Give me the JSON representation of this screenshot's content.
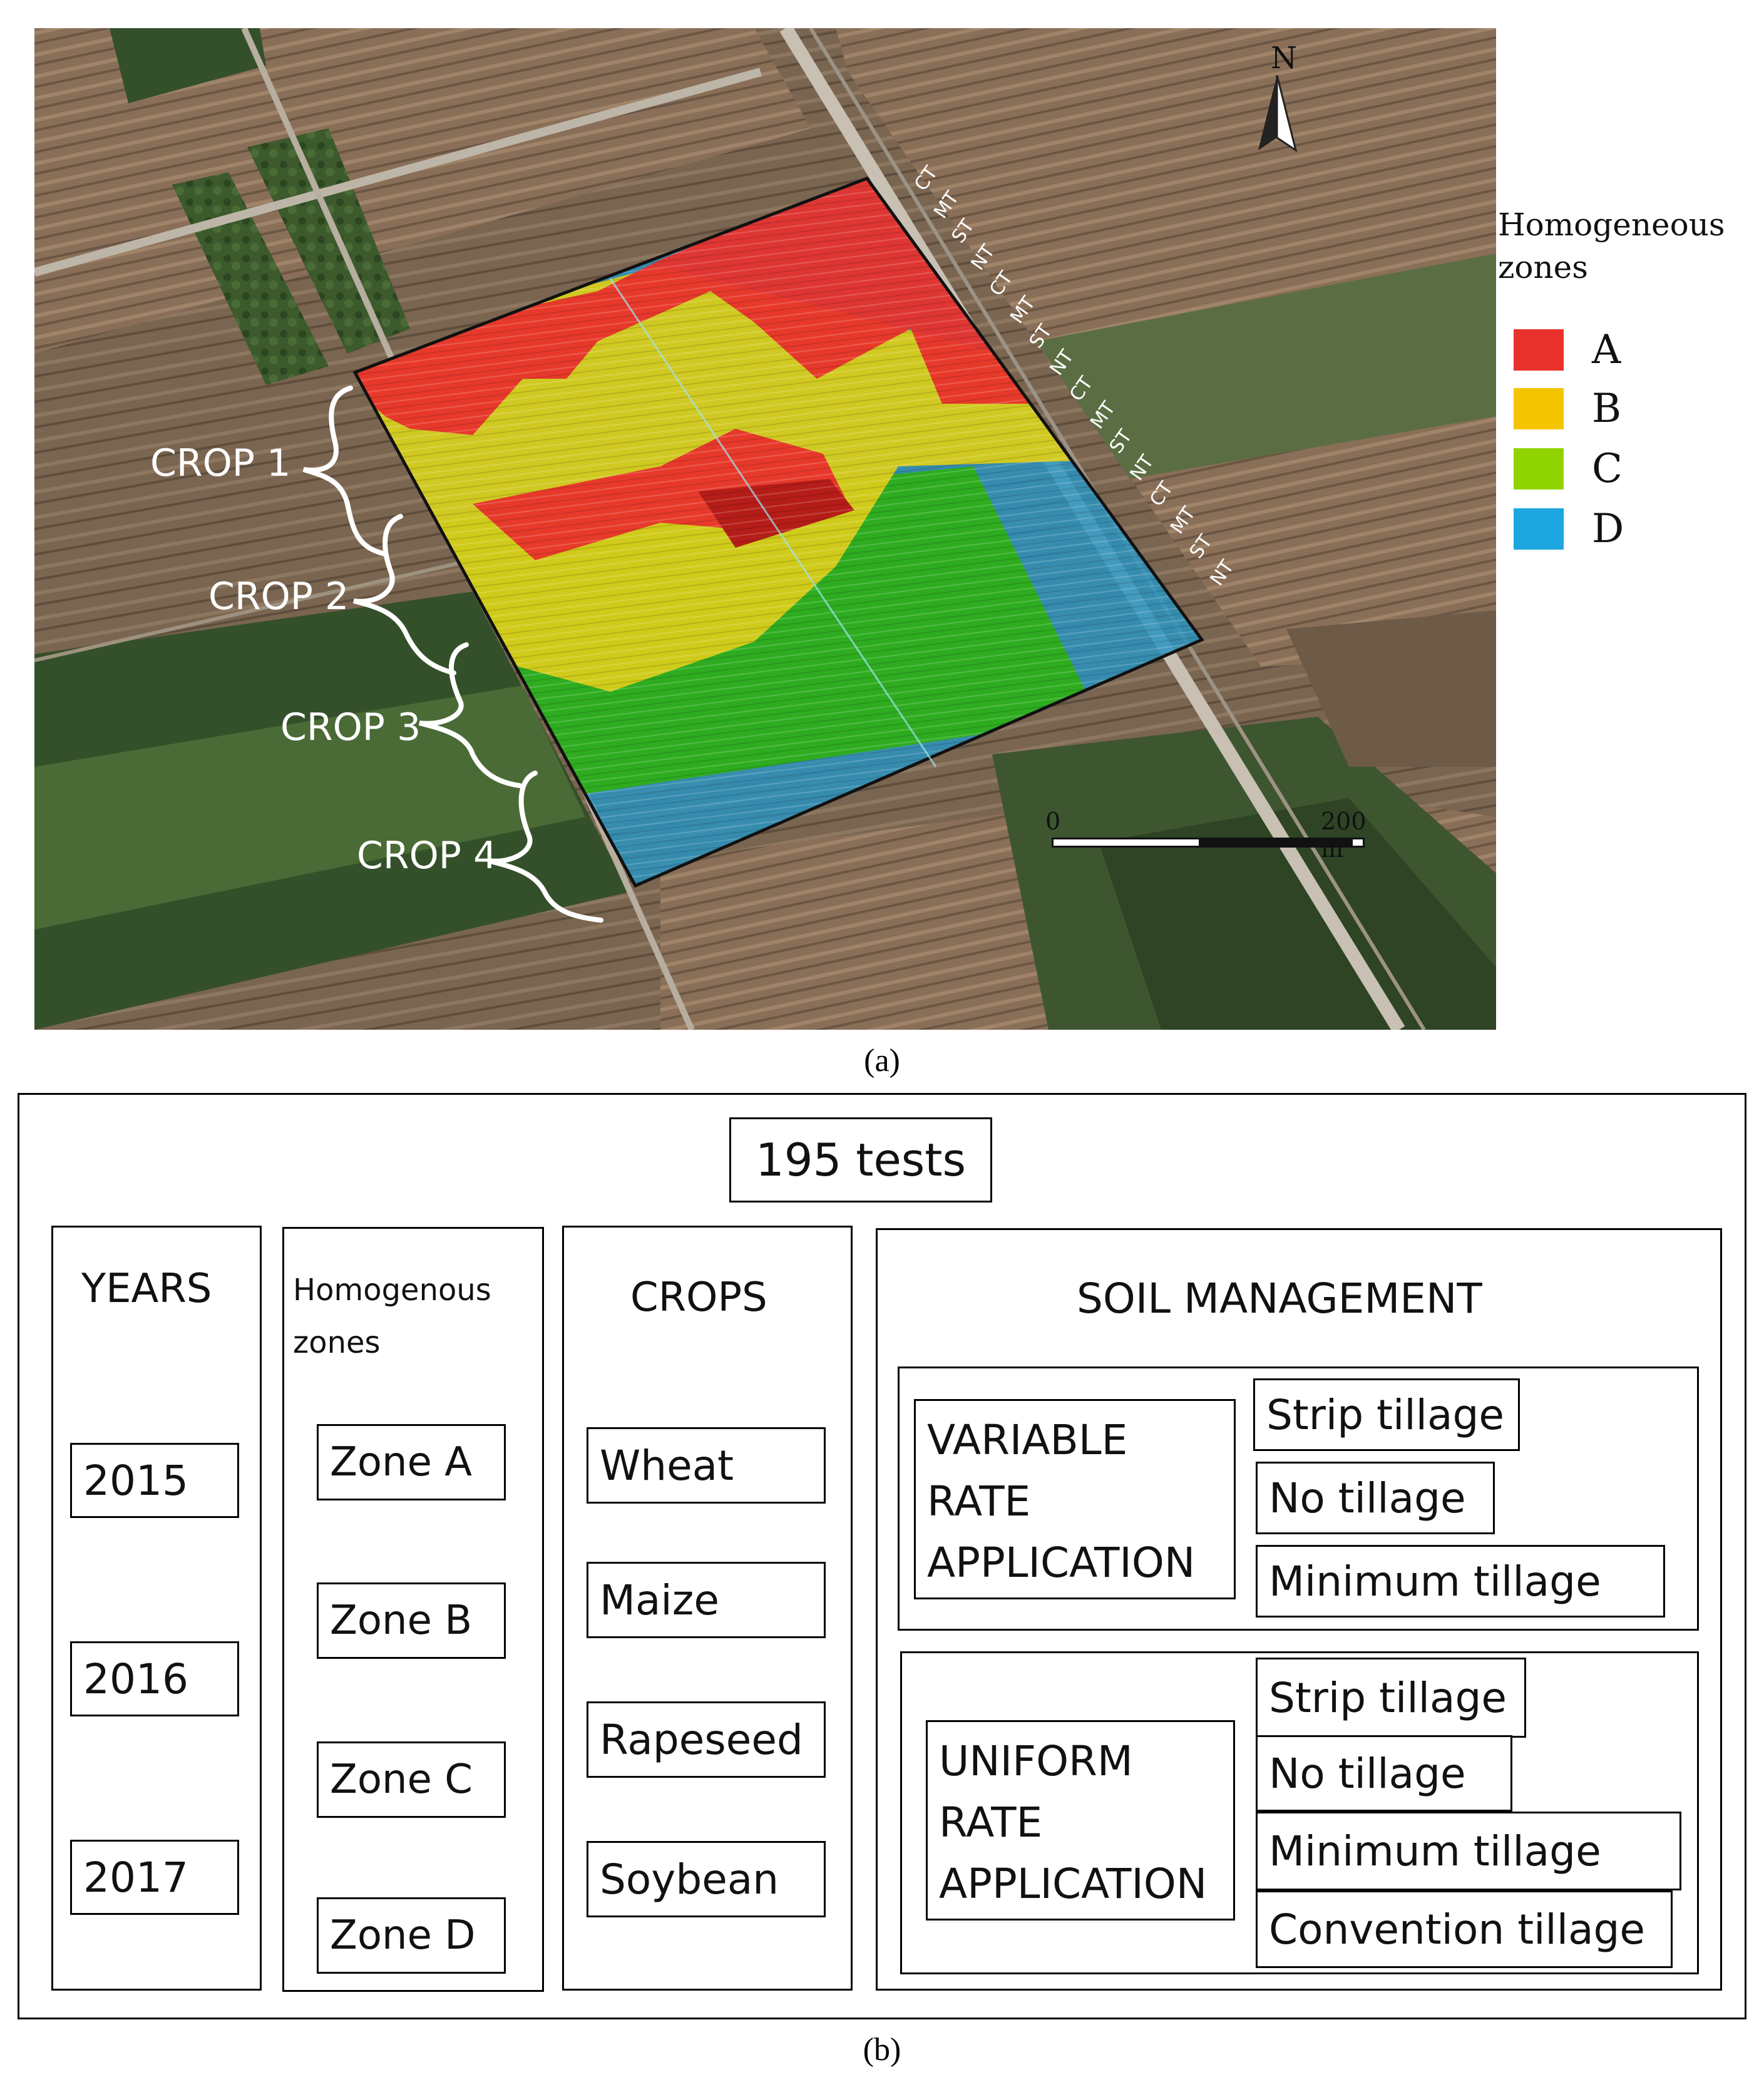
{
  "panel_a": {
    "caption": "(a)",
    "north_label": "N",
    "legend": {
      "title_line1": "Homogeneous",
      "title_line2": "zones",
      "items": [
        {
          "label": "A",
          "color": "#e8312c"
        },
        {
          "label": "B",
          "color": "#f5c400"
        },
        {
          "label": "C",
          "color": "#8fd400"
        },
        {
          "label": "D",
          "color": "#1ea6e0"
        }
      ]
    },
    "crop_labels": [
      "CROP 1",
      "CROP 2",
      "CROP 3",
      "CROP 4"
    ],
    "strip_labels": [
      "CT",
      "MT",
      "ST",
      "NT",
      "CT",
      "MT",
      "ST",
      "NT",
      "CT",
      "MT",
      "ST",
      "NT",
      "CT",
      "MT",
      "ST",
      "NT"
    ],
    "scale_bar": {
      "start": "0",
      "end": "200 m"
    }
  },
  "panel_b": {
    "caption": "(b)",
    "total": "195 tests",
    "years": {
      "title": "YEARS",
      "items": [
        "2015",
        "2016",
        "2017"
      ]
    },
    "zones": {
      "title_line1": "Homogenous",
      "title_line2": "zones",
      "items": [
        "Zone A",
        "Zone B",
        "Zone C",
        "Zone D"
      ]
    },
    "crops": {
      "title": "CROPS",
      "items": [
        "Wheat",
        "Maize",
        "Rapeseed",
        "Soybean"
      ]
    },
    "soil": {
      "title": "SOIL MANAGEMENT",
      "variable": {
        "label_lines": [
          "VARIABLE",
          "RATE",
          "APPLICATION"
        ],
        "items": [
          "Strip tillage",
          "No tillage",
          "Minimum tillage"
        ]
      },
      "uniform": {
        "label_lines": [
          "UNIFORM",
          "RATE",
          "APPLICATION"
        ],
        "items": [
          "Strip tillage",
          "No tillage",
          "Minimum tillage",
          "Convention tillage"
        ]
      }
    }
  }
}
